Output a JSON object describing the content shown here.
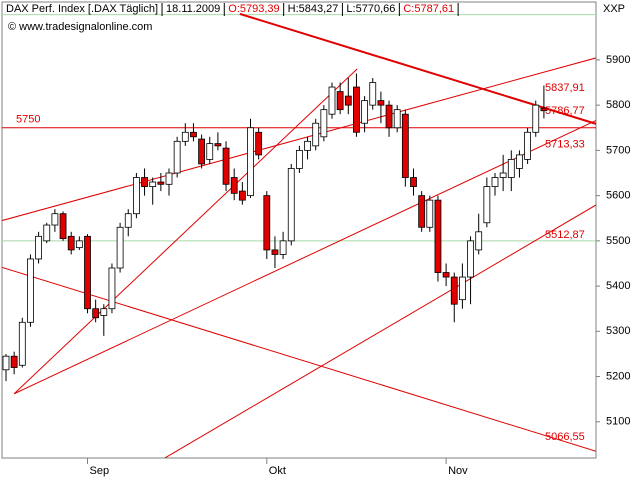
{
  "chart_data": {
    "type": "candlestick",
    "title": "DAX Perf. Index [.DAX Täglich]",
    "date": "18.11.2009",
    "ohlc_labels": [
      {
        "text": "O:5793,39",
        "color": "#e00000"
      },
      {
        "text": "H:5843,27",
        "color": "#000000"
      },
      {
        "text": "L:5770,66",
        "color": "#000000"
      },
      {
        "text": "C:5787,61",
        "color": "#e00000"
      }
    ],
    "watermark": "© www.tradesignalonline.com",
    "exchange": "XXP",
    "categories": [
      null,
      null,
      null,
      null,
      null,
      null,
      null,
      null,
      null,
      null,
      "Sep",
      null,
      null,
      null,
      null,
      null,
      null,
      null,
      null,
      null,
      null,
      null,
      null,
      null,
      null,
      null,
      null,
      null,
      null,
      null,
      null,
      null,
      "Okt",
      null,
      null,
      null,
      null,
      null,
      null,
      null,
      null,
      null,
      null,
      null,
      null,
      null,
      null,
      null,
      null,
      null,
      null,
      null,
      null,
      null,
      "Nov",
      null,
      null,
      null,
      null,
      null,
      null,
      null,
      null,
      null,
      null,
      null,
      null
    ],
    "open": [
      5215,
      5245,
      5225,
      5320,
      5460,
      5500,
      5535,
      5560,
      5510,
      5485,
      5510,
      5350,
      5335,
      5350,
      5440,
      5530,
      5560,
      5640,
      5620,
      5630,
      5625,
      5650,
      5720,
      5740,
      5725,
      5680,
      5715,
      5705,
      5640,
      5610,
      5600,
      5740,
      5600,
      5480,
      5470,
      5500,
      5660,
      5700,
      5710,
      5730,
      5780,
      5830,
      5820,
      5840,
      5760,
      5800,
      5810,
      5800,
      5750,
      5780,
      5640,
      5600,
      5530,
      5590,
      5430,
      5420,
      5370,
      5420,
      5480,
      5540,
      5620,
      5640,
      5640,
      5660,
      5680,
      5740,
      5793.39
    ],
    "high": [
      5250,
      5255,
      5330,
      5470,
      5520,
      5540,
      5570,
      5565,
      5520,
      5510,
      5515,
      5370,
      5360,
      5450,
      5540,
      5570,
      5650,
      5660,
      5640,
      5650,
      5660,
      5730,
      5760,
      5760,
      5735,
      5730,
      5740,
      5720,
      5660,
      5630,
      5770,
      5750,
      5610,
      5510,
      5520,
      5670,
      5710,
      5730,
      5770,
      5800,
      5850,
      5850,
      5860,
      5870,
      5820,
      5860,
      5830,
      5810,
      5800,
      5790,
      5660,
      5610,
      5600,
      5600,
      5450,
      5430,
      5450,
      5510,
      5560,
      5640,
      5650,
      5690,
      5700,
      5700,
      5750,
      5810,
      5843.27
    ],
    "low": [
      5190,
      5205,
      5220,
      5310,
      5450,
      5495,
      5520,
      5500,
      5470,
      5480,
      5340,
      5320,
      5290,
      5340,
      5430,
      5510,
      5550,
      5600,
      5580,
      5610,
      5600,
      5640,
      5710,
      5720,
      5660,
      5670,
      5700,
      5610,
      5590,
      5580,
      5595,
      5680,
      5460,
      5440,
      5460,
      5490,
      5650,
      5680,
      5700,
      5720,
      5770,
      5780,
      5780,
      5730,
      5740,
      5790,
      5760,
      5730,
      5740,
      5620,
      5600,
      5520,
      5520,
      5410,
      5400,
      5320,
      5350,
      5360,
      5470,
      5530,
      5600,
      5610,
      5610,
      5640,
      5670,
      5730,
      5770.66
    ],
    "close": [
      5245,
      5220,
      5320,
      5460,
      5510,
      5535,
      5560,
      5505,
      5480,
      5500,
      5350,
      5330,
      5350,
      5440,
      5530,
      5560,
      5640,
      5620,
      5630,
      5625,
      5650,
      5720,
      5740,
      5730,
      5670,
      5715,
      5710,
      5625,
      5605,
      5590,
      5750,
      5690,
      5480,
      5470,
      5500,
      5660,
      5700,
      5720,
      5760,
      5790,
      5840,
      5790,
      5800,
      5740,
      5810,
      5850,
      5800,
      5750,
      5790,
      5640,
      5620,
      5530,
      5590,
      5430,
      5420,
      5360,
      5420,
      5500,
      5520,
      5620,
      5640,
      5650,
      5680,
      5690,
      5740,
      5800,
      5787.61
    ],
    "up_color": "#ffffff",
    "down_color": "#e00000",
    "ylim": [
      5020,
      6028
    ],
    "yticks": [
      5100,
      5200,
      5300,
      5400,
      5500,
      5600,
      5700,
      5800,
      5900
    ],
    "green_lines": [
      6000,
      5500
    ],
    "hlines": [
      {
        "value": 5750,
        "label": "5750",
        "color": "#e00000"
      }
    ],
    "trendlines": [
      {
        "x": [
          28.7,
          72.4
        ],
        "y": [
          6001.7,
          5758.6
        ],
        "width": 2
      },
      {
        "x": [
          -0.5,
          72.4
        ],
        "y": [
          5544.8,
          5904.4
        ],
        "width": 1
      },
      {
        "x": [
          1.0,
          43.1
        ],
        "y": [
          5162.0,
          5880.1
        ],
        "width": 1
      },
      {
        "x": [
          1.0,
          72.4
        ],
        "y": [
          5162.0,
          5766.2
        ],
        "width": 1
      },
      {
        "x": [
          19.5,
          72.4
        ],
        "y": [
          5020.1,
          5579.3
        ],
        "width": 1
      },
      {
        "x": [
          -0.5,
          72.4
        ],
        "y": [
          5441.5,
          5034.8
        ],
        "width": 1
      }
    ],
    "trendline_color": "#e00000",
    "trendline_labels": [
      {
        "value": 5837.91,
        "label": "5837,91"
      },
      {
        "value": 5786.77,
        "label": "5786,77"
      },
      {
        "value": 5713.33,
        "label": "5713,33"
      },
      {
        "value": 5512.87,
        "label": "5512,87"
      },
      {
        "value": 5066.55,
        "label": "5066,55"
      }
    ]
  }
}
